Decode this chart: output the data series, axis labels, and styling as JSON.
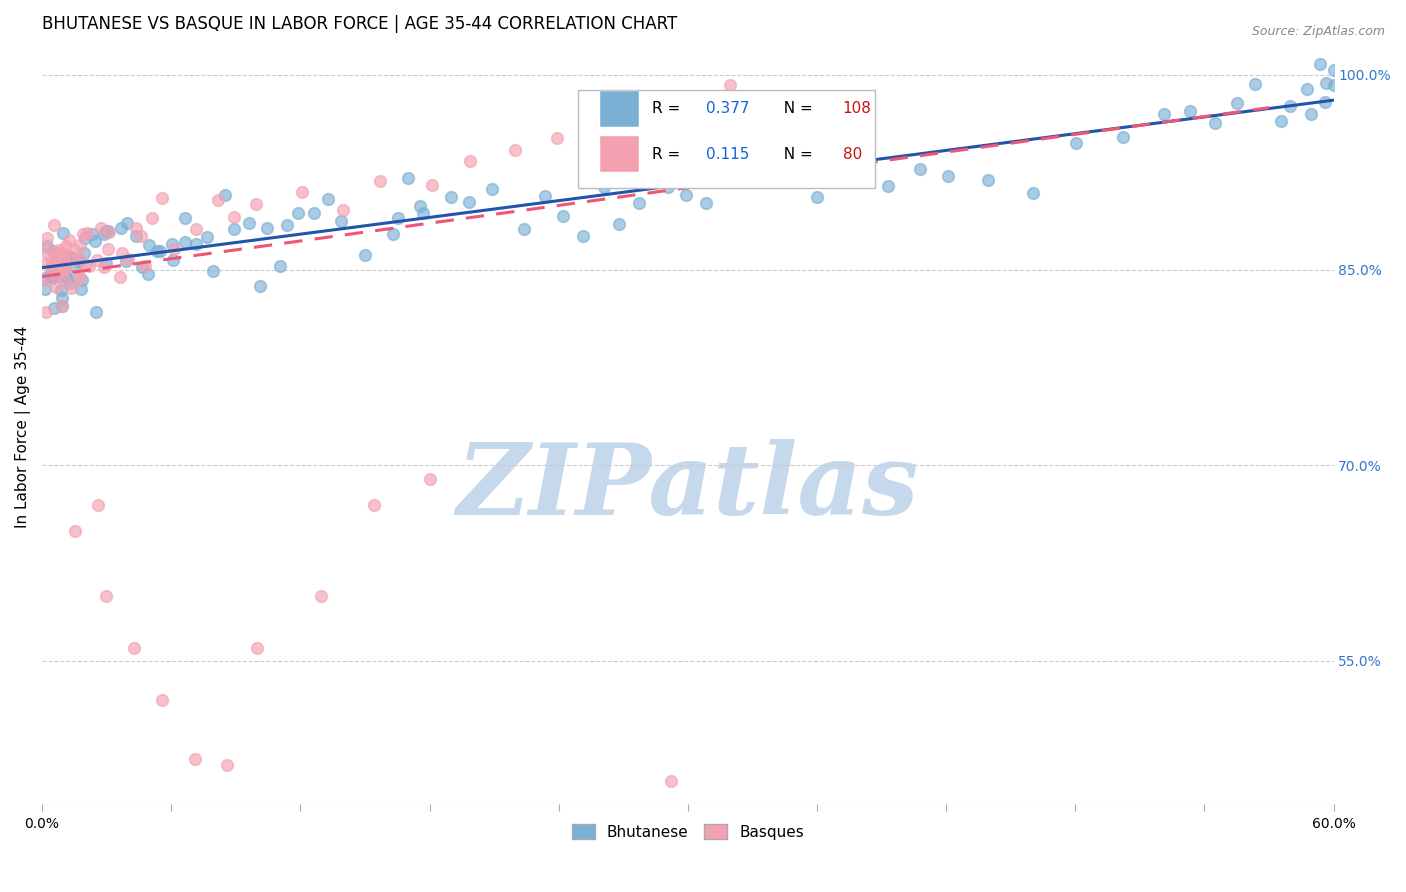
{
  "title": "BHUTANESE VS BASQUE IN LABOR FORCE | AGE 35-44 CORRELATION CHART",
  "source": "Source: ZipAtlas.com",
  "ylabel": "In Labor Force | Age 35-44",
  "xlim": [
    0.0,
    0.6
  ],
  "ylim": [
    0.44,
    1.02
  ],
  "xticks": [
    0.0,
    0.06,
    0.12,
    0.18,
    0.24,
    0.3,
    0.36,
    0.42,
    0.48,
    0.54,
    0.6
  ],
  "yticks_right": [
    0.55,
    0.7,
    0.85,
    1.0
  ],
  "ytick_right_labels": [
    "55.0%",
    "70.0%",
    "85.0%",
    "100.0%"
  ],
  "blue_R": 0.377,
  "blue_N": 108,
  "pink_R": 0.115,
  "pink_N": 80,
  "blue_color": "#7BAFD4",
  "pink_color": "#F4A0B0",
  "blue_line_color": "#2255AA",
  "pink_line_color": "#EE5577",
  "legend_R_color": "#1166DD",
  "legend_N_color": "#CC1111",
  "watermark_text": "ZIPatlas",
  "watermark_color": "#C5D8EC",
  "background_color": "#FFFFFF",
  "title_fontsize": 12,
  "axis_label_fontsize": 11,
  "blue_x": [
    0.002,
    0.003,
    0.004,
    0.004,
    0.005,
    0.005,
    0.006,
    0.006,
    0.007,
    0.007,
    0.008,
    0.008,
    0.009,
    0.009,
    0.01,
    0.01,
    0.011,
    0.012,
    0.013,
    0.014,
    0.015,
    0.016,
    0.017,
    0.018,
    0.019,
    0.02,
    0.021,
    0.022,
    0.023,
    0.025,
    0.027,
    0.028,
    0.03,
    0.032,
    0.035,
    0.038,
    0.04,
    0.042,
    0.045,
    0.048,
    0.05,
    0.052,
    0.055,
    0.058,
    0.06,
    0.063,
    0.067,
    0.07,
    0.075,
    0.08,
    0.085,
    0.09,
    0.095,
    0.1,
    0.105,
    0.11,
    0.115,
    0.12,
    0.13,
    0.135,
    0.14,
    0.15,
    0.16,
    0.165,
    0.17,
    0.175,
    0.18,
    0.19,
    0.2,
    0.21,
    0.22,
    0.23,
    0.24,
    0.25,
    0.26,
    0.27,
    0.28,
    0.29,
    0.3,
    0.31,
    0.32,
    0.33,
    0.34,
    0.35,
    0.36,
    0.37,
    0.38,
    0.39,
    0.41,
    0.42,
    0.44,
    0.46,
    0.48,
    0.5,
    0.52,
    0.535,
    0.545,
    0.555,
    0.565,
    0.575,
    0.58,
    0.585,
    0.59,
    0.595,
    0.598,
    0.6,
    0.605,
    0.61
  ],
  "blue_y": [
    0.855,
    0.862,
    0.85,
    0.858,
    0.848,
    0.852,
    0.845,
    0.853,
    0.85,
    0.856,
    0.848,
    0.854,
    0.852,
    0.858,
    0.85,
    0.855,
    0.848,
    0.852,
    0.856,
    0.85,
    0.853,
    0.848,
    0.855,
    0.852,
    0.86,
    0.856,
    0.862,
    0.858,
    0.852,
    0.86,
    0.856,
    0.865,
    0.86,
    0.862,
    0.858,
    0.862,
    0.865,
    0.87,
    0.862,
    0.868,
    0.86,
    0.875,
    0.862,
    0.872,
    0.868,
    0.865,
    0.88,
    0.87,
    0.875,
    0.882,
    0.868,
    0.89,
    0.875,
    0.87,
    0.885,
    0.878,
    0.892,
    0.875,
    0.882,
    0.895,
    0.88,
    0.888,
    0.895,
    0.882,
    0.9,
    0.892,
    0.885,
    0.898,
    0.892,
    0.905,
    0.898,
    0.892,
    0.905,
    0.898,
    0.912,
    0.905,
    0.918,
    0.912,
    0.92,
    0.915,
    0.922,
    0.918,
    0.925,
    0.92,
    0.928,
    0.922,
    0.93,
    0.925,
    0.932,
    0.928,
    0.935,
    0.938,
    0.942,
    0.948,
    0.95,
    0.955,
    0.96,
    0.965,
    0.97,
    0.975,
    0.98,
    0.985,
    0.99,
    0.995,
    0.998,
    1.0,
    0.997,
    0.994
  ],
  "pink_x": [
    0.001,
    0.002,
    0.002,
    0.003,
    0.003,
    0.004,
    0.004,
    0.005,
    0.005,
    0.005,
    0.006,
    0.006,
    0.007,
    0.007,
    0.008,
    0.008,
    0.008,
    0.009,
    0.009,
    0.01,
    0.01,
    0.011,
    0.012,
    0.013,
    0.014,
    0.015,
    0.016,
    0.017,
    0.018,
    0.019,
    0.02,
    0.021,
    0.022,
    0.023,
    0.025,
    0.027,
    0.028,
    0.03,
    0.032,
    0.035,
    0.038,
    0.04,
    0.042,
    0.045,
    0.048,
    0.05,
    0.055,
    0.06,
    0.07,
    0.08,
    0.09,
    0.1,
    0.12,
    0.14,
    0.16,
    0.18,
    0.2,
    0.22,
    0.24,
    0.26,
    0.28,
    0.3,
    0.32,
    0.34,
    0.36,
    0.015,
    0.025,
    0.03,
    0.04,
    0.055,
    0.07,
    0.085,
    0.1,
    0.13,
    0.155,
    0.18,
    0.295,
    0.005,
    0.008,
    0.015
  ],
  "pink_y": [
    0.855,
    0.862,
    0.848,
    0.858,
    0.845,
    0.852,
    0.84,
    0.848,
    0.855,
    0.845,
    0.852,
    0.848,
    0.842,
    0.858,
    0.848,
    0.855,
    0.842,
    0.85,
    0.858,
    0.848,
    0.855,
    0.852,
    0.858,
    0.848,
    0.862,
    0.855,
    0.862,
    0.858,
    0.852,
    0.862,
    0.86,
    0.865,
    0.86,
    0.868,
    0.862,
    0.865,
    0.87,
    0.862,
    0.872,
    0.862,
    0.875,
    0.87,
    0.878,
    0.872,
    0.88,
    0.875,
    0.882,
    0.888,
    0.892,
    0.895,
    0.9,
    0.905,
    0.912,
    0.918,
    0.925,
    0.93,
    0.938,
    0.942,
    0.948,
    0.952,
    0.958,
    0.962,
    0.968,
    0.972,
    0.978,
    0.65,
    0.67,
    0.6,
    0.56,
    0.52,
    0.475,
    0.47,
    0.56,
    0.6,
    0.67,
    0.69,
    0.458,
    0.87,
    0.87,
    0.86
  ]
}
